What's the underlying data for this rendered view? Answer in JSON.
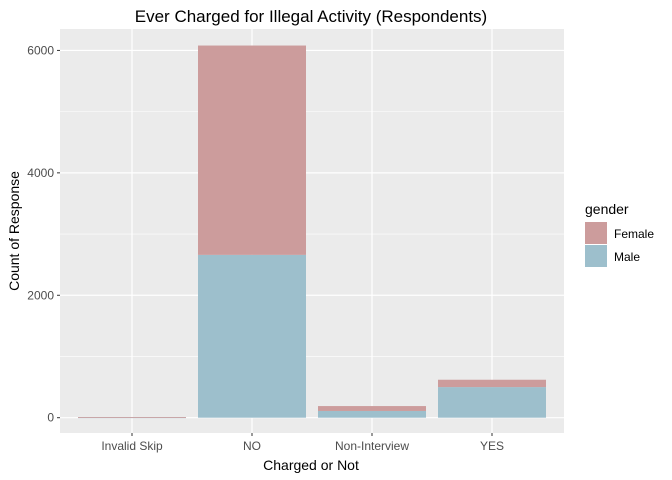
{
  "chart_data": {
    "type": "bar",
    "stacked": true,
    "title": "Ever Charged for Illegal Activity (Respondents)",
    "xlabel": "Charged or Not",
    "ylabel": "Count of Response",
    "categories": [
      "Invalid Skip",
      "NO",
      "Non-Interview",
      "YES"
    ],
    "series": [
      {
        "name": "Male",
        "color": "#9dbfcc",
        "values": [
          6,
          2660,
          110,
          500
        ]
      },
      {
        "name": "Female",
        "color": "#cc9c9c",
        "values": [
          4,
          3420,
          80,
          120
        ]
      }
    ],
    "ylim": [
      -250,
      6350
    ],
    "yticks": [
      0,
      2000,
      4000,
      6000
    ],
    "grid": true,
    "legend": {
      "title": "gender",
      "placement": "right",
      "entries": [
        "Female",
        "Male"
      ]
    },
    "colors": {
      "panel_background": "#ebebeb",
      "grid": "#ffffff"
    }
  }
}
